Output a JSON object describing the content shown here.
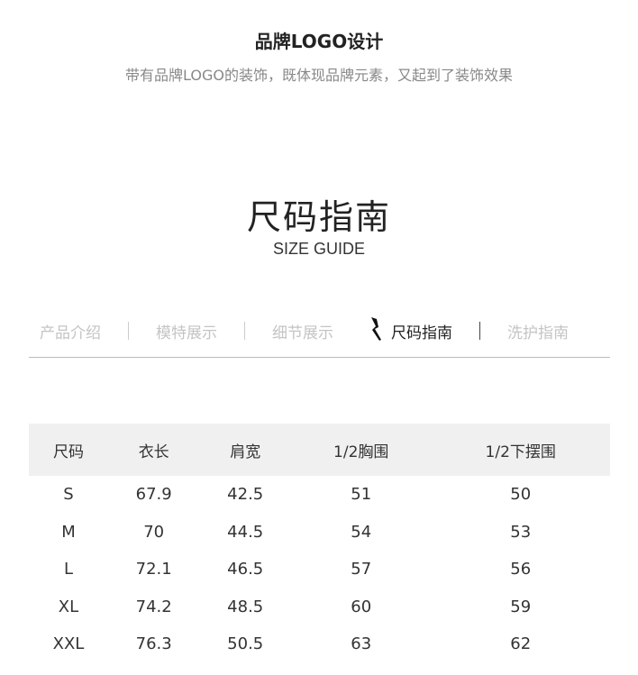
{
  "section_logo": {
    "title": "品牌LOGO设计",
    "subtitle": "带有品牌LOGO的装饰，既体现品牌元素，又起到了装饰效果"
  },
  "size_guide": {
    "title": "尺码指南",
    "subtitle": "SIZE GUIDE"
  },
  "nav": {
    "items": [
      "产品介绍",
      "模特展示",
      "细节展示",
      "尺码指南",
      "洗护指南"
    ],
    "active": "尺码指南",
    "active_icon": "pointer-mark-icon"
  },
  "table": {
    "headers": [
      "尺码",
      "衣长",
      "肩宽",
      "1/2胸围",
      "1/2下摆围"
    ],
    "rows": [
      [
        "S",
        "67.9",
        "42.5",
        "51",
        "50"
      ],
      [
        "M",
        "70",
        "44.5",
        "54",
        "53"
      ],
      [
        "L",
        "72.1",
        "46.5",
        "57",
        "56"
      ],
      [
        "XL",
        "74.2",
        "48.5",
        "60",
        "59"
      ],
      [
        "XXL",
        "76.3",
        "50.5",
        "63",
        "62"
      ]
    ]
  }
}
